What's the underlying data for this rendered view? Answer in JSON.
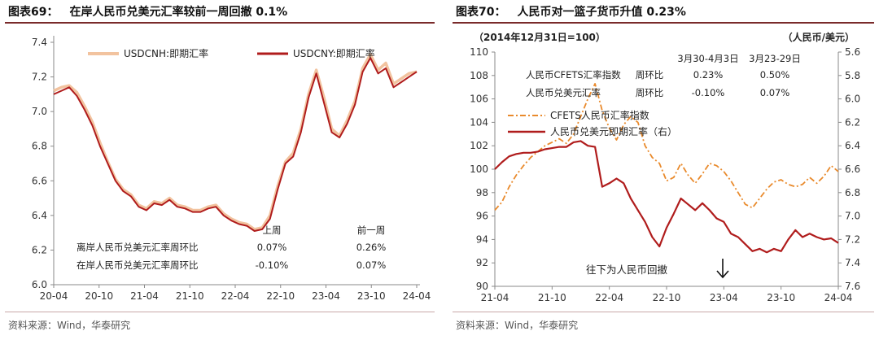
{
  "chart_data": [
    {
      "type": "line",
      "title_num": "图表69：",
      "title": "在岸人民币兑美元汇率较前一周回撤 0.1%",
      "x_ticks": [
        "20-04",
        "20-10",
        "21-04",
        "21-10",
        "22-04",
        "22-10",
        "23-04",
        "23-10",
        "24-04"
      ],
      "ylim": [
        6.0,
        7.4
      ],
      "y_ticks": [
        "6.0",
        "6.2",
        "6.4",
        "6.6",
        "6.8",
        "7.0",
        "7.2",
        "7.4"
      ],
      "legend": [
        "USDCNH:即期汇率",
        "USDCNY:即期汇率"
      ],
      "series": [
        {
          "name": "USDCNH:即期汇率",
          "color": "#f2c39f",
          "values": [
            7.12,
            7.14,
            7.15,
            7.11,
            7.03,
            6.94,
            6.82,
            6.71,
            6.61,
            6.55,
            6.52,
            6.46,
            6.44,
            6.48,
            6.47,
            6.5,
            6.46,
            6.45,
            6.43,
            6.43,
            6.45,
            6.46,
            6.41,
            6.38,
            6.36,
            6.35,
            6.32,
            6.33,
            6.4,
            6.57,
            6.71,
            6.76,
            6.9,
            7.1,
            7.24,
            7.08,
            6.9,
            6.86,
            6.95,
            7.06,
            7.25,
            7.33,
            7.24,
            7.28,
            7.16,
            7.19,
            7.22,
            7.23
          ]
        },
        {
          "name": "USDCNY:即期汇率",
          "color": "#b01c1c",
          "values": [
            7.1,
            7.12,
            7.14,
            7.09,
            7.01,
            6.92,
            6.8,
            6.7,
            6.6,
            6.54,
            6.51,
            6.45,
            6.43,
            6.47,
            6.46,
            6.49,
            6.45,
            6.44,
            6.42,
            6.42,
            6.44,
            6.45,
            6.4,
            6.37,
            6.35,
            6.34,
            6.31,
            6.32,
            6.38,
            6.55,
            6.7,
            6.74,
            6.88,
            7.08,
            7.22,
            7.05,
            6.88,
            6.85,
            6.93,
            7.04,
            7.23,
            7.31,
            7.22,
            7.25,
            7.14,
            7.17,
            7.2,
            7.23
          ]
        }
      ],
      "table": {
        "headers": [
          "上周",
          "前一周"
        ],
        "rows": [
          {
            "label": "离岸人民币兑美元汇率周环比",
            "values": [
              "0.07%",
              "0.26%"
            ]
          },
          {
            "label": "在岸人民币兑美元汇率周环比",
            "values": [
              "-0.10%",
              "0.07%"
            ]
          }
        ]
      },
      "source": "资料来源：Wind，华泰研究"
    },
    {
      "type": "line",
      "title_num": "图表70：",
      "title": "人民币对一篮子货币升值 0.23%",
      "left_axis_label": "（2014年12月31日=100）",
      "right_axis_label": "（人民币/美元）",
      "x_ticks": [
        "21-04",
        "21-10",
        "22-04",
        "22-10",
        "23-04",
        "23-10",
        "24-04"
      ],
      "ylim_left": [
        90,
        110
      ],
      "y_ticks_left": [
        "90",
        "92",
        "94",
        "96",
        "98",
        "100",
        "102",
        "104",
        "106",
        "108",
        "110"
      ],
      "ylim_right": [
        7.6,
        5.6
      ],
      "y_ticks_right": [
        "5.6",
        "5.8",
        "6.0",
        "6.2",
        "6.4",
        "6.6",
        "6.8",
        "7.0",
        "7.2",
        "7.4",
        "7.6"
      ],
      "legend": [
        "CFETS人民币汇率指数",
        "人民币兑美元即期汇率（右）"
      ],
      "series": [
        {
          "name": "CFETS人民币汇率指数",
          "axis": "left",
          "color": "#e98a2c",
          "dash": true,
          "values": [
            96.5,
            97.2,
            98.5,
            99.5,
            100.3,
            101,
            101.5,
            102,
            102.3,
            102.6,
            102.2,
            103,
            104.5,
            106,
            107.3,
            105,
            103.5,
            102.5,
            103.8,
            104.5,
            104,
            102,
            101,
            100.5,
            99,
            99.3,
            100.5,
            99.5,
            98.8,
            99.6,
            100.5,
            100.3,
            99.8,
            99,
            98,
            97,
            96.7,
            97.5,
            98.3,
            98.9,
            99.1,
            98.7,
            98.5,
            98.7,
            99.3,
            98.8,
            99.4,
            100.3,
            99.8
          ]
        },
        {
          "name": "人民币兑美元即期汇率（右）",
          "axis": "right",
          "color": "#b01c1c",
          "dash": false,
          "values": [
            6.6,
            6.54,
            6.49,
            6.47,
            6.46,
            6.46,
            6.45,
            6.43,
            6.42,
            6.41,
            6.41,
            6.37,
            6.36,
            6.4,
            6.41,
            6.75,
            6.72,
            6.68,
            6.72,
            6.85,
            6.95,
            7.05,
            7.18,
            7.26,
            7.1,
            6.98,
            6.85,
            6.9,
            6.95,
            6.89,
            6.95,
            7.02,
            7.05,
            7.15,
            7.18,
            7.24,
            7.3,
            7.28,
            7.31,
            7.28,
            7.3,
            7.2,
            7.12,
            7.18,
            7.15,
            7.18,
            7.2,
            7.19,
            7.23
          ]
        }
      ],
      "table": {
        "headers": [
          "3月30-4月3日",
          "3月23-29日"
        ],
        "rows": [
          {
            "label": "人民币CFETS汇率指数",
            "metric": "周环比",
            "values": [
              "0.23%",
              "0.50%"
            ]
          },
          {
            "label": "人民币兑美元汇率",
            "metric": "周环比",
            "values": [
              "-0.10%",
              "0.07%"
            ]
          }
        ]
      },
      "annotation": "往下为人民币回撤",
      "source": "资料来源：Wind，华泰研究"
    }
  ]
}
